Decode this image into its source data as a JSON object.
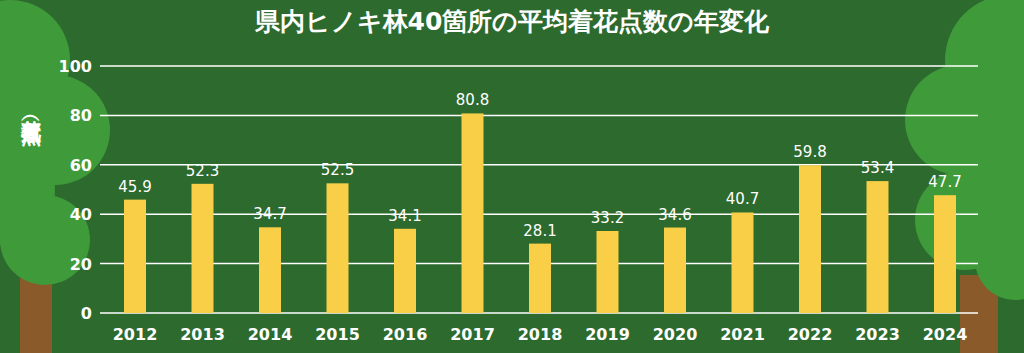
{
  "chart_data": {
    "type": "bar",
    "title": "県内ヒノキ林40箇所の平均着花点数の年変化",
    "y_label": "着花点数（点）",
    "categories": [
      "2012",
      "2013",
      "2014",
      "2015",
      "2016",
      "2017",
      "2018",
      "2019",
      "2020",
      "2021",
      "2022",
      "2023",
      "2024"
    ],
    "values": [
      45.9,
      52.3,
      34.7,
      52.5,
      34.1,
      80.8,
      28.1,
      33.2,
      34.6,
      40.7,
      59.8,
      53.4,
      47.7
    ],
    "color": "#f8cf47",
    "ylim": [
      0,
      100
    ],
    "yticks": [
      0,
      20,
      40,
      60,
      80,
      100
    ],
    "grid": true,
    "data_labels": true
  }
}
